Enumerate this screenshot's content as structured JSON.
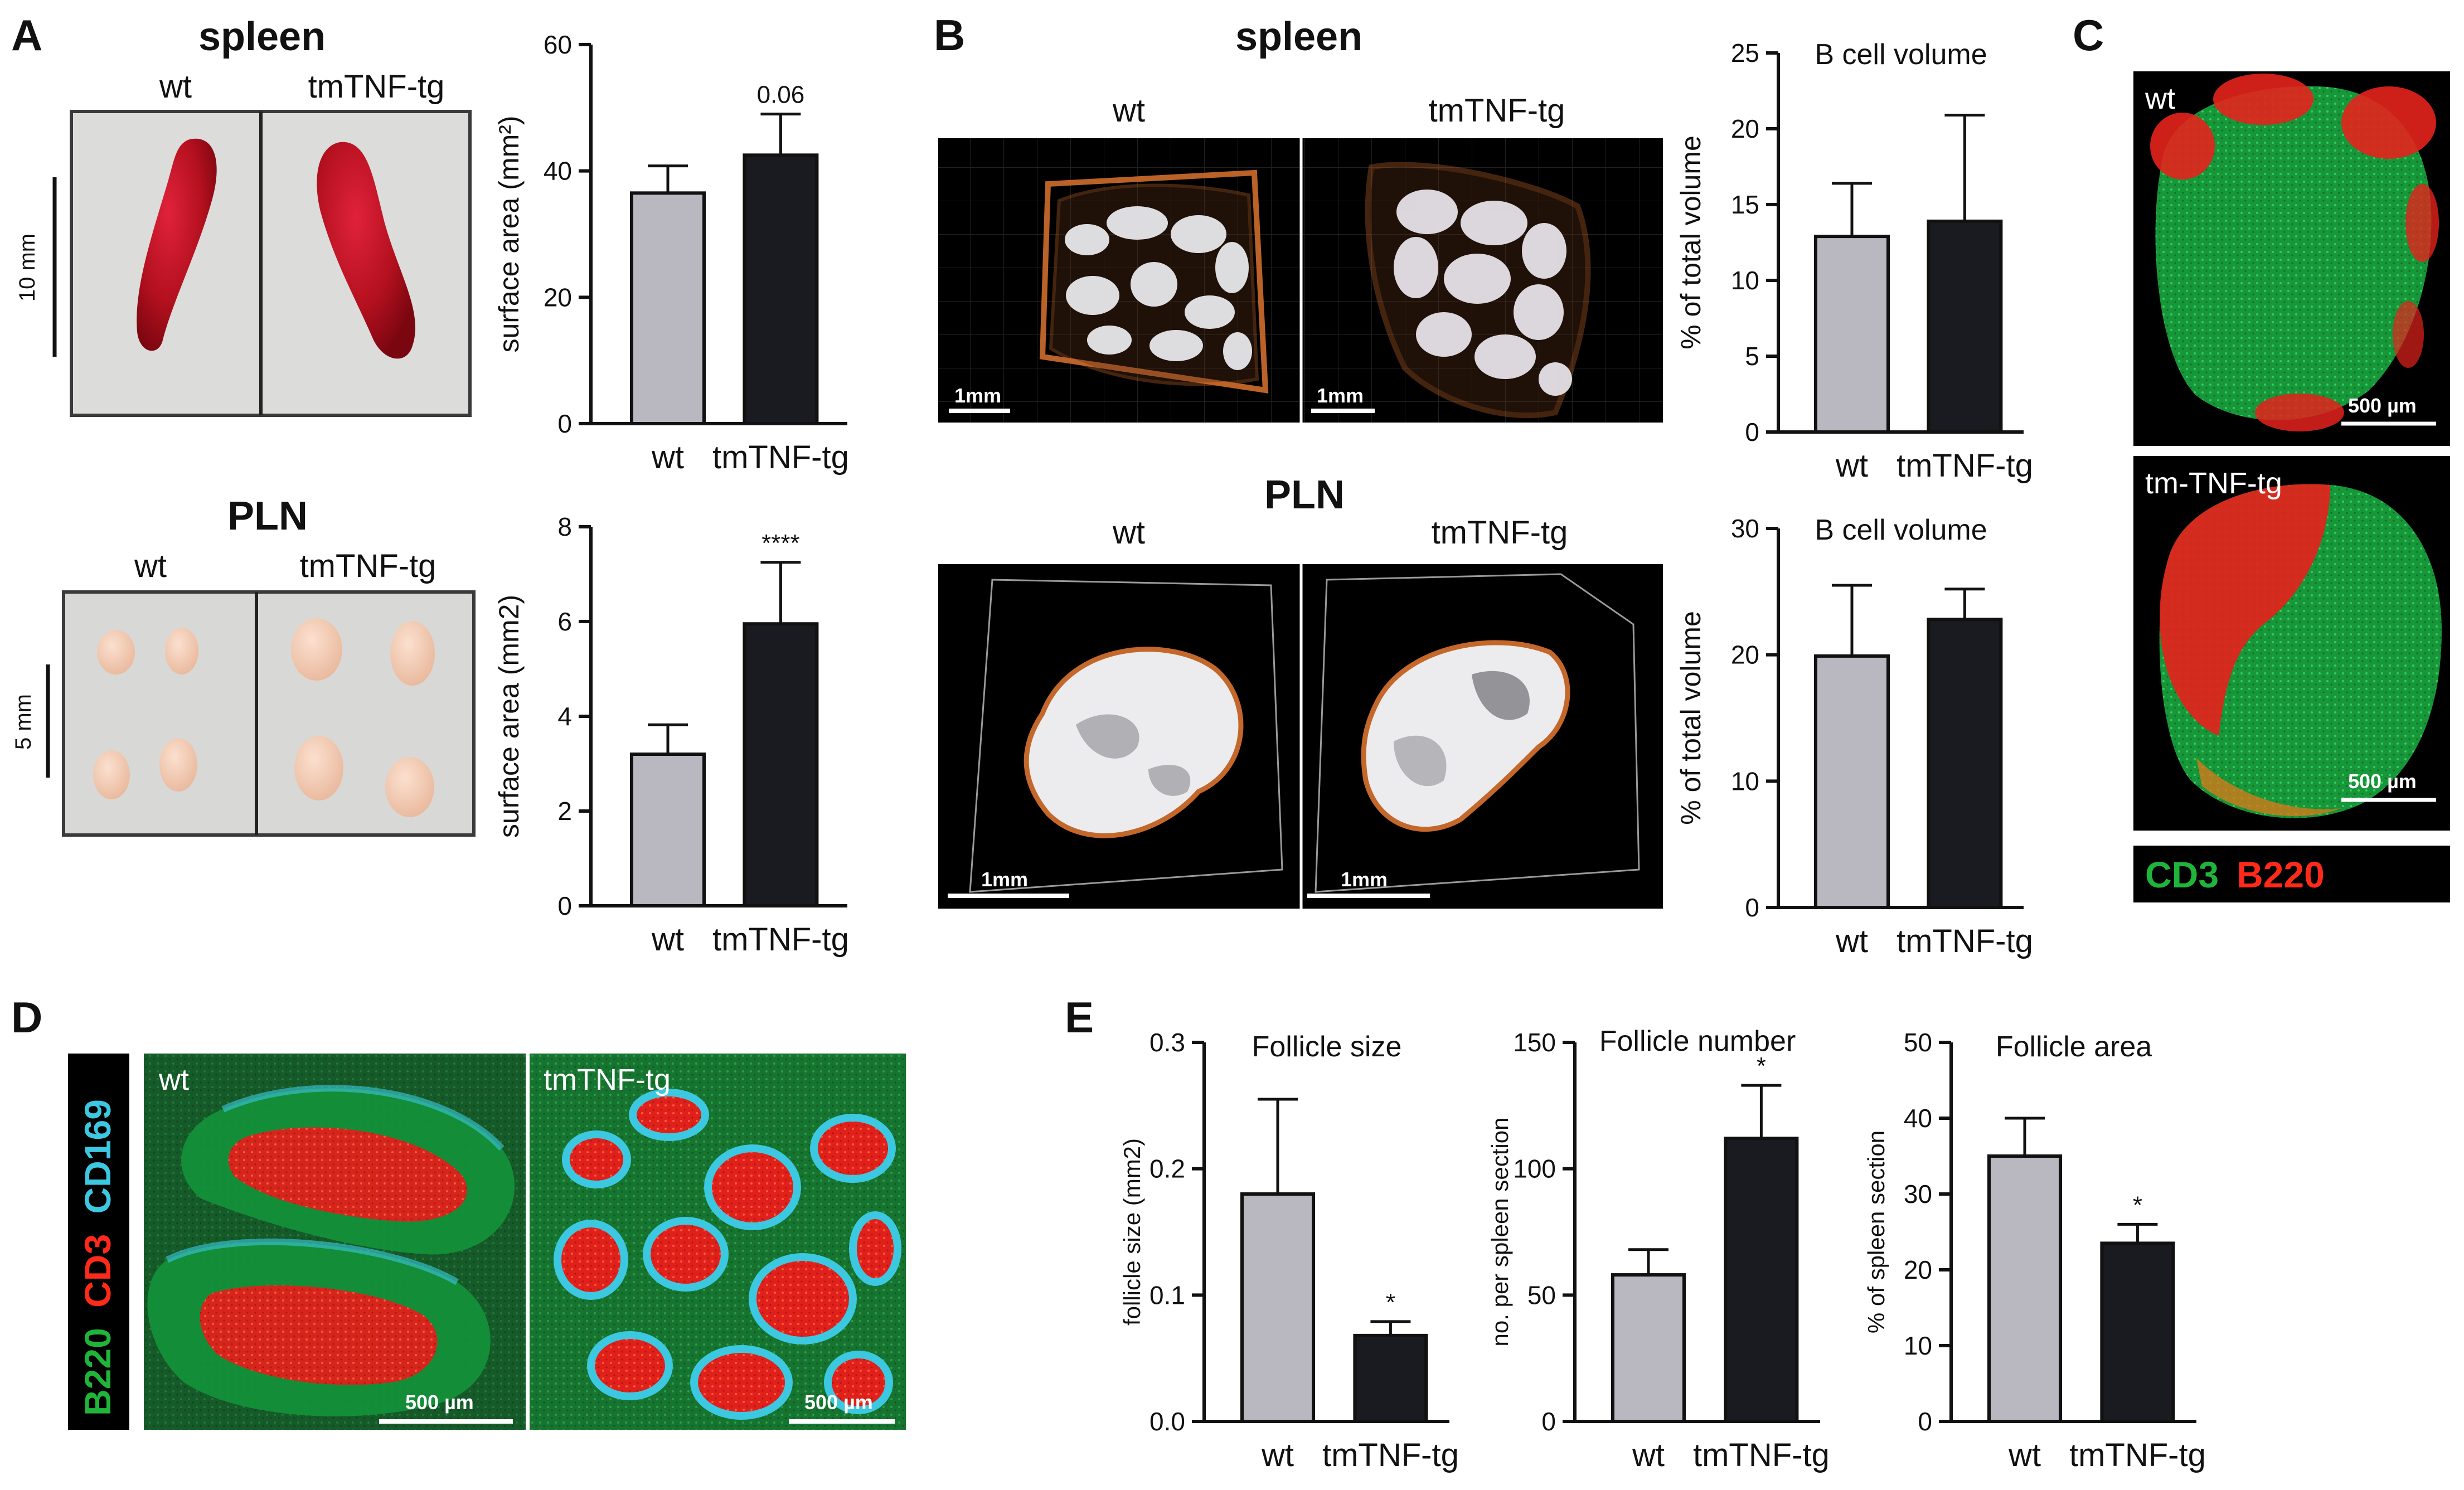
{
  "panels": {
    "A": {
      "letter": "A",
      "spleen_title": "spleen",
      "spleen_col_wt": "wt",
      "spleen_col_tg": "tmTNF-tg",
      "spleen_scale": "10 mm",
      "pln_title": "PLN",
      "pln_col_wt": "wt",
      "pln_col_tg": "tmTNF-tg",
      "pln_scale": "5 mm"
    },
    "B": {
      "letter": "B",
      "spleen_title": "spleen",
      "spleen_col_wt": "wt",
      "spleen_col_tg": "tmTNF-tg",
      "pln_title": "PLN",
      "pln_col_wt": "wt",
      "pln_col_tg": "tmTNF-tg",
      "scale_label": "1mm"
    },
    "C": {
      "letter": "C",
      "top_label": "wt",
      "bottom_label": "tm-TNF-tg",
      "scale_label": "500 µm",
      "legend_cd3": "CD3",
      "legend_b220": "B220",
      "color_cd3": "#1fb53a",
      "color_b220": "#ff2a1a"
    },
    "D": {
      "letter": "D",
      "stain_b220": "B220",
      "stain_cd3": "CD3",
      "stain_cd169": "CD169",
      "label_wt": "wt",
      "label_tg": "tmTNF-tg",
      "scale_label": "500 µm",
      "color_b220": "#1fb53a",
      "color_cd3": "#ff2a1a",
      "color_cd169": "#3cc8e0"
    },
    "E": {
      "letter": "E"
    }
  },
  "chart_data": [
    {
      "id": "A-spleen-surface",
      "type": "bar",
      "title": "",
      "categories": [
        "wt",
        "tmTNF-tg"
      ],
      "values": [
        36.5,
        42.5
      ],
      "errors": [
        4.3,
        6.5
      ],
      "annotations": [
        "",
        "0.06"
      ],
      "ylabel": "surface area (mm²)",
      "ylim": [
        0,
        60
      ],
      "yticks": [
        "0",
        "20",
        "40",
        "60"
      ],
      "bar_colors": [
        "#b9b8c0",
        "#1a1b20"
      ]
    },
    {
      "id": "A-pln-surface",
      "type": "bar",
      "title": "",
      "categories": [
        "wt",
        "tmTNF-tg"
      ],
      "values": [
        3.2,
        5.95
      ],
      "errors": [
        0.62,
        1.3
      ],
      "annotations": [
        "",
        "****"
      ],
      "ylabel": "surface area (mm2)",
      "ylim": [
        0,
        8
      ],
      "yticks": [
        "0",
        "2",
        "4",
        "6",
        "8"
      ],
      "bar_colors": [
        "#b9b8c0",
        "#1a1b20"
      ]
    },
    {
      "id": "B-spleen-bcell",
      "type": "bar",
      "title": "B cell volume",
      "categories": [
        "wt",
        "tmTNF-tg"
      ],
      "values": [
        12.9,
        13.9
      ],
      "errors": [
        3.5,
        7.0
      ],
      "annotations": [
        "",
        ""
      ],
      "ylabel": "% of total volume",
      "ylim": [
        0,
        25
      ],
      "yticks": [
        "0",
        "5",
        "10",
        "15",
        "20",
        "25"
      ],
      "bar_colors": [
        "#b9b8c0",
        "#1a1b20"
      ]
    },
    {
      "id": "B-pln-bcell",
      "type": "bar",
      "title": "B cell volume",
      "categories": [
        "wt",
        "tmTNF-tg"
      ],
      "values": [
        19.9,
        22.8
      ],
      "errors": [
        5.6,
        2.4
      ],
      "annotations": [
        "",
        ""
      ],
      "ylabel": "% of total volume",
      "ylim": [
        0,
        30
      ],
      "yticks": [
        "0",
        "10",
        "20",
        "30"
      ],
      "bar_colors": [
        "#b9b8c0",
        "#1a1b20"
      ]
    },
    {
      "id": "E-follicle-size",
      "type": "bar",
      "title": "Follicle size",
      "categories": [
        "wt",
        "tmTNF-tg"
      ],
      "values": [
        0.18,
        0.068
      ],
      "errors": [
        0.075,
        0.011
      ],
      "annotations": [
        "",
        "*"
      ],
      "ylabel": "follicle size (mm2)",
      "ylim": [
        0,
        0.3
      ],
      "yticks": [
        "0.0",
        "0.1",
        "0.2",
        "0.3"
      ],
      "bar_colors": [
        "#b9b8c0",
        "#1a1b20"
      ]
    },
    {
      "id": "E-follicle-number",
      "type": "bar",
      "title": "Follicle number",
      "categories": [
        "wt",
        "tmTNF-tg"
      ],
      "values": [
        58,
        112
      ],
      "errors": [
        10,
        21
      ],
      "annotations": [
        "",
        "*"
      ],
      "ylabel": "no. per spleen section",
      "ylim": [
        0,
        150
      ],
      "yticks": [
        "0",
        "50",
        "100",
        "150"
      ],
      "bar_colors": [
        "#b9b8c0",
        "#1a1b20"
      ]
    },
    {
      "id": "E-follicle-area",
      "type": "bar",
      "title": "Follicle area",
      "categories": [
        "wt",
        "tmTNF-tg"
      ],
      "values": [
        35,
        23.5
      ],
      "errors": [
        5,
        2.5
      ],
      "annotations": [
        "",
        "*"
      ],
      "ylabel": "% of spleen section",
      "ylim": [
        0,
        50
      ],
      "yticks": [
        "0",
        "10",
        "20",
        "30",
        "40",
        "50"
      ],
      "bar_colors": [
        "#b9b8c0",
        "#1a1b20"
      ]
    }
  ]
}
